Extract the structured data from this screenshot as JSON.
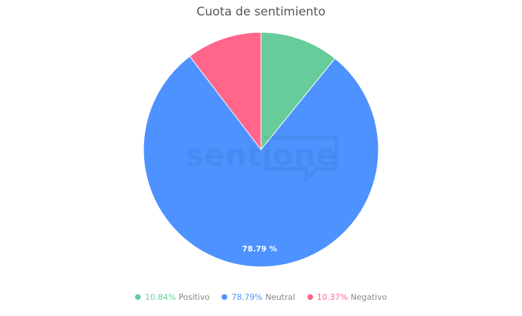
{
  "chart_data": {
    "type": "pie",
    "title": "Cuota de sentimiento",
    "start_angle": "top",
    "direction": "clockwise",
    "slices": [
      {
        "name": "Positivo",
        "value": 10.84,
        "label": "10.84%",
        "color": "#66cd9a"
      },
      {
        "name": "Neutral",
        "value": 78.79,
        "label": "78.79%",
        "color": "#4d92ff"
      },
      {
        "name": "Negativo",
        "value": 10.37,
        "label": "10.37%",
        "color": "#ff668a"
      }
    ],
    "data_labels": [
      "",
      "78.79 %",
      ""
    ],
    "legend_position": "bottom"
  },
  "watermark": "sentione"
}
